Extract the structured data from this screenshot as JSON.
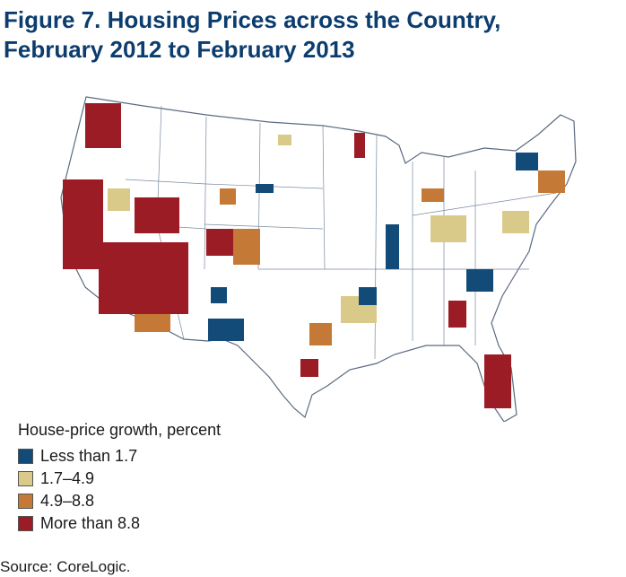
{
  "figure": {
    "title_line1": "Figure 7. Housing Prices across the Country,",
    "title_line2": "February 2012 to February 2013"
  },
  "legend": {
    "title": "House-price growth, percent",
    "items": [
      {
        "label": "Less than 1.7",
        "color": "#134b78"
      },
      {
        "label": "1.7–4.9",
        "color": "#d9ca8a"
      },
      {
        "label": "4.9–8.8",
        "color": "#c47a36"
      },
      {
        "label": "More than 8.8",
        "color": "#9b1c24"
      }
    ]
  },
  "source": "Source: CoreLogic.",
  "colors": {
    "low": "#134b78",
    "mid_low": "#d9ca8a",
    "mid_high": "#c47a36",
    "high": "#9b1c24",
    "state_border": "#7a8aa0",
    "land": "#ffffff"
  }
}
